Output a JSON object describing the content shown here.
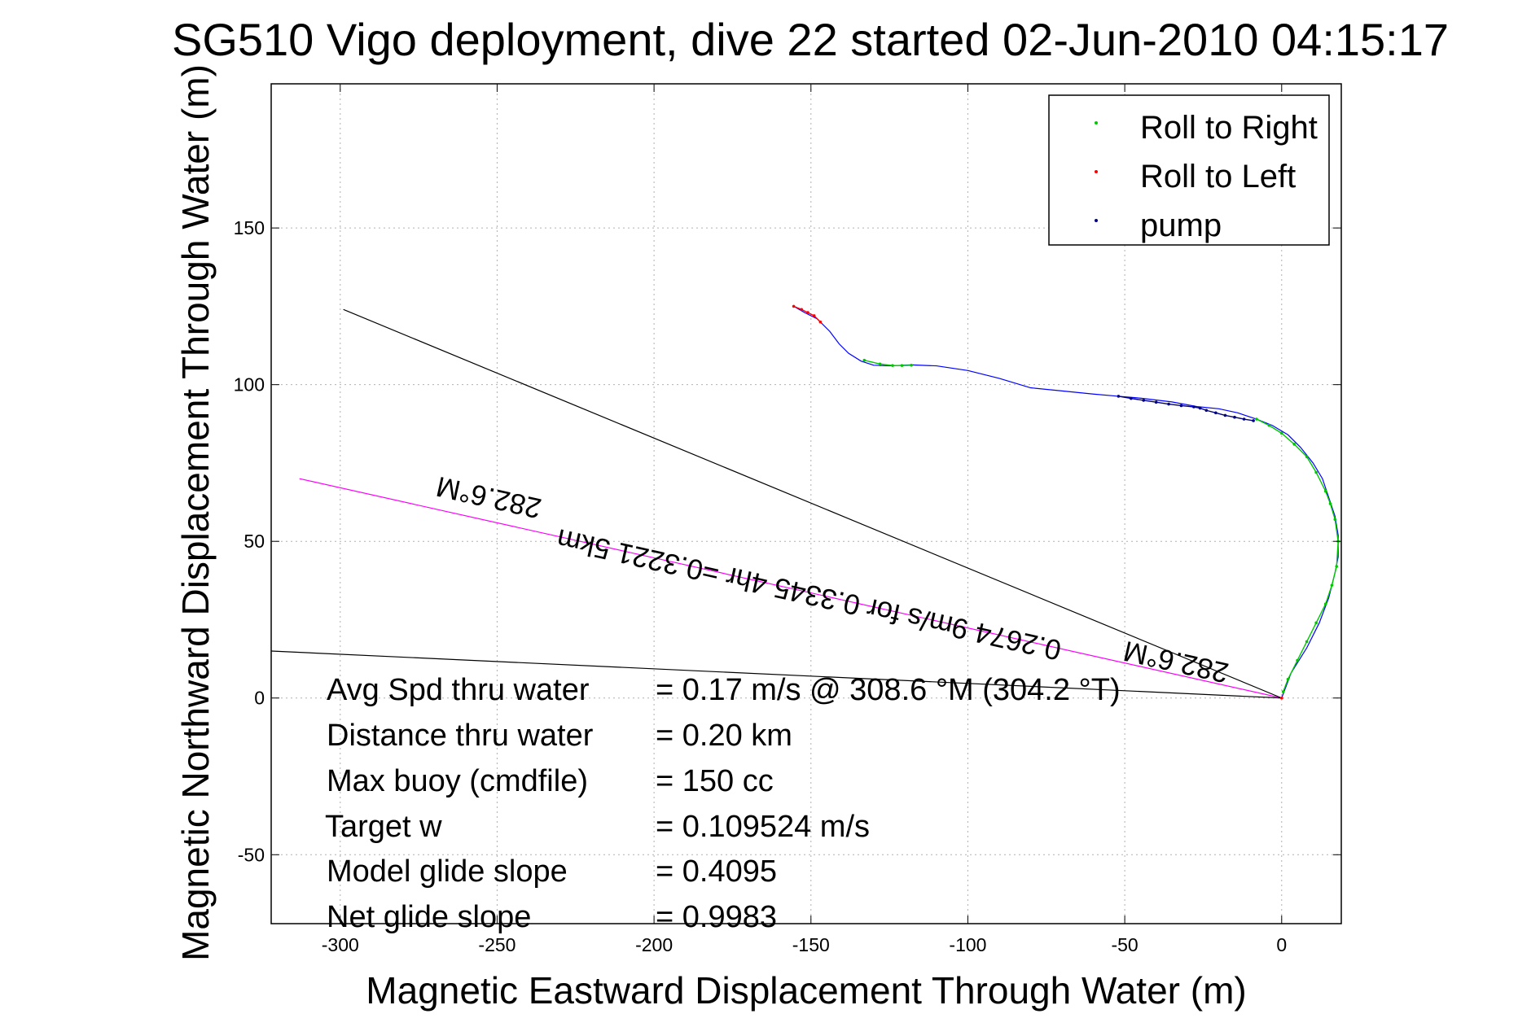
{
  "chart_data": {
    "type": "line",
    "title": "SG510 Vigo deployment, dive 22 started 02-Jun-2010 04:15:17",
    "xlabel": "Magnetic Eastward Displacement Through Water (m)",
    "ylabel": "Magnetic Northward Displacement Through Water (m)",
    "xlim": [
      -322,
      19
    ],
    "ylim": [
      -72,
      196
    ],
    "xticks": [
      -300,
      -250,
      -200,
      -150,
      -100,
      -50,
      0
    ],
    "yticks": [
      -50,
      0,
      50,
      100,
      150
    ],
    "xtick_labels": [
      "-300",
      "-250",
      "-200",
      "-150",
      "-100",
      "-50",
      "0"
    ],
    "ytick_labels": [
      "-50",
      "0",
      "50",
      "100",
      "150"
    ],
    "grid": true,
    "legend_position": "top-right",
    "legend": [
      {
        "label": "Roll to Right",
        "color": "#00c800"
      },
      {
        "label": "Roll to Left",
        "color": "#ff0000"
      },
      {
        "label": "pump",
        "color": "#000080"
      }
    ],
    "track": {
      "color": "#0000ff",
      "x": [
        0,
        3,
        8,
        12,
        15,
        17,
        18,
        18,
        17,
        15,
        13,
        10,
        6,
        2,
        -3,
        -8,
        -14,
        -20,
        -27,
        -35,
        -45,
        -52,
        -60,
        -70,
        -80,
        -90,
        -100,
        -110,
        -118,
        -125,
        -130,
        -134,
        -138,
        -141,
        -144,
        -148,
        -152,
        -155.5
      ],
      "y": [
        0,
        8,
        16,
        24,
        32,
        40,
        45,
        52,
        58,
        64,
        70,
        75,
        80,
        84,
        87,
        89,
        91,
        92.3,
        93,
        94.5,
        95.7,
        96.3,
        97,
        98,
        99,
        102,
        104.5,
        106,
        106.3,
        106,
        106.2,
        107.5,
        110,
        113,
        117,
        121,
        123,
        125
      ]
    },
    "roll_right_segments": [
      {
        "x": [
          -133,
          -128,
          -124,
          -121,
          -118
        ],
        "y": [
          107.8,
          106.6,
          106.1,
          106.1,
          106.2
        ]
      },
      {
        "x": [
          -8,
          -4,
          0,
          4,
          8,
          11,
          14,
          15.5,
          17,
          18,
          17.5,
          16,
          14,
          11,
          8,
          5,
          2,
          0.5
        ],
        "y": [
          89,
          87,
          84.5,
          81,
          77,
          72,
          66,
          62,
          57,
          50,
          42,
          36,
          30,
          24,
          18,
          12,
          6,
          2
        ]
      }
    ],
    "roll_left_segments": [
      {
        "x": [
          -155.5,
          -153,
          -151,
          -149,
          -147
        ],
        "y": [
          125,
          124,
          123,
          122,
          120
        ]
      },
      {
        "x": [
          0
        ],
        "y": [
          0
        ]
      }
    ],
    "pump_segments": [
      {
        "x": [
          -52,
          -48,
          -44,
          -40,
          -36,
          -32,
          -28,
          -26,
          -24,
          -21,
          -18,
          -15,
          -12,
          -9
        ],
        "y": [
          96.3,
          95.6,
          95,
          94.4,
          93.8,
          93.3,
          92.9,
          92.5,
          91.8,
          91,
          90.2,
          89.6,
          89,
          88.5
        ]
      }
    ],
    "reference_lines": [
      {
        "name": "heading-line",
        "color": "#ff00ff",
        "x": [
          0,
          -313
        ],
        "y": [
          0,
          70
        ]
      },
      {
        "name": "line-1",
        "color": "#000000",
        "x": [
          0,
          -299
        ],
        "y": [
          0,
          124
        ]
      },
      {
        "name": "line-2",
        "color": "#000000",
        "x": [
          0,
          -322
        ],
        "y": [
          0,
          15
        ]
      }
    ],
    "annotations": [
      {
        "text": "282.6°M",
        "x": -252,
        "y": 67,
        "rotate": 192.6
      },
      {
        "text": "282.6°M",
        "x": -33,
        "y": 14.5,
        "rotate": 192.6
      },
      {
        "text": "0.2674 9m/s for 0.3345 4hr =0.3221 5km",
        "x": -150,
        "y": 36,
        "rotate": 192.6
      }
    ]
  },
  "info_table": [
    {
      "label": "Avg Spd thru water",
      "value": "=  0.17 m/s @ 308.6 °M (304.2 °T)"
    },
    {
      "label": "Distance thru water",
      "value": "=  0.20 km"
    },
    {
      "label": "Max buoy (cmdfile)",
      "value": "= 150 cc"
    },
    {
      "label": "Target w",
      "value": "= 0.109524 m/s"
    },
    {
      "label": "Model glide slope",
      "value": "= 0.4095"
    },
    {
      "label": "Net glide slope",
      "value": "= 0.9983"
    }
  ]
}
